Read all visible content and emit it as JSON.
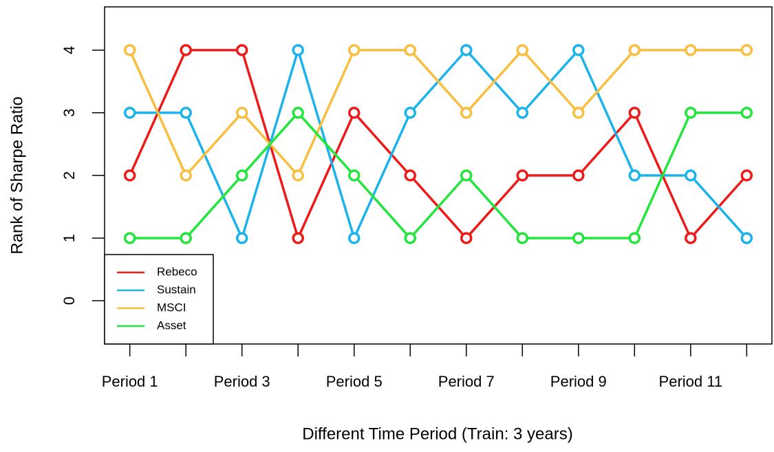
{
  "chart_data": {
    "type": "line",
    "x_label": "Different Time Period (Train: 3 years)",
    "y_label": "Rank of Sharpe Ratio",
    "categories": [
      "Period 1",
      null,
      "Period 3",
      null,
      "Period 5",
      null,
      "Period 7",
      null,
      "Period 9",
      null,
      "Period 11",
      null
    ],
    "series": [
      {
        "name": "Rebeco",
        "color": "#ee1a1a",
        "values": [
          2,
          4,
          4,
          1,
          3,
          2,
          1,
          2,
          2,
          3,
          1,
          2
        ]
      },
      {
        "name": "Sustain",
        "color": "#1bb3ec",
        "values": [
          3,
          3,
          1,
          4,
          1,
          3,
          4,
          3,
          4,
          2,
          2,
          1
        ]
      },
      {
        "name": "MSCI",
        "color": "#f9be3e",
        "values": [
          4,
          2,
          3,
          2,
          4,
          4,
          3,
          4,
          3,
          4,
          4,
          4
        ]
      },
      {
        "name": "Asset",
        "color": "#22e63c",
        "values": [
          1,
          1,
          2,
          3,
          2,
          1,
          2,
          1,
          1,
          1,
          3,
          3
        ]
      }
    ],
    "ylim": [
      -0.69,
      4.69
    ],
    "yticks": [
      0,
      1,
      2,
      3,
      4
    ],
    "legend": "bottomleft",
    "markers": true
  }
}
